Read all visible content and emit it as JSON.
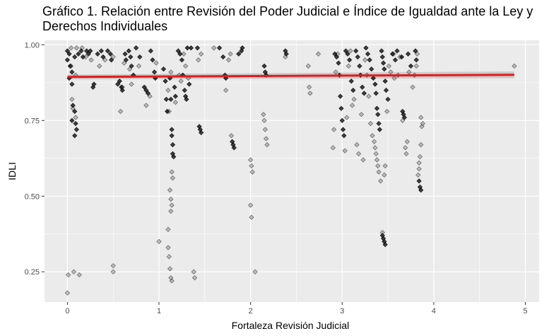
{
  "chart_data": {
    "type": "scatter",
    "title": "Gráfico 1. Relación entre Revisión del Poder Judicial e Índice de Igualdad ante la Ley y Derechos Individuales",
    "xlabel": "Fortaleza Revisión Judicial",
    "ylabel": "IDLI",
    "xlim": [
      -0.25,
      5.15
    ],
    "ylim": [
      0.15,
      1.015
    ],
    "x_ticks": [
      0,
      1,
      2,
      3,
      4,
      5
    ],
    "x_tick_labels": [
      "0",
      "1",
      "2",
      "3",
      "4",
      "5"
    ],
    "y_ticks": [
      0.25,
      0.5,
      0.75,
      1.0
    ],
    "y_tick_labels": [
      "0.25",
      "0.50",
      "0.75",
      "1.00"
    ],
    "grid": true,
    "colors": {
      "panel": "#ebebeb",
      "grid": "#ffffff",
      "points": "#000000",
      "trend": "#e41a1c",
      "band": "#bdbdbd"
    },
    "trend_line": {
      "x": [
        0.0,
        4.88
      ],
      "y": [
        0.894,
        0.901
      ],
      "band_halfwidth": 0.008
    },
    "series": [
      {
        "values": [
          [
            0.0,
            0.98
          ],
          [
            0.02,
            0.97
          ],
          [
            0.0,
            0.95
          ],
          [
            0.03,
            0.93
          ],
          [
            0.05,
            0.91
          ],
          [
            0.02,
            0.89
          ],
          [
            0.05,
            0.87
          ],
          [
            0.08,
            0.96
          ],
          [
            0.06,
            0.8
          ],
          [
            0.08,
            0.78
          ],
          [
            0.05,
            0.75
          ],
          [
            0.09,
            0.74
          ],
          [
            0.1,
            0.72
          ],
          [
            0.08,
            0.7
          ],
          [
            0.12,
            0.97
          ],
          [
            0.15,
            0.98
          ],
          [
            0.17,
            0.96
          ],
          [
            0.21,
            0.98
          ],
          [
            0.23,
            0.97
          ],
          [
            0.25,
            0.98
          ],
          [
            0.28,
            0.86
          ],
          [
            0.29,
            0.87
          ],
          [
            0.33,
            0.97
          ],
          [
            0.37,
            0.98
          ],
          [
            0.39,
            0.96
          ],
          [
            0.44,
            0.98
          ],
          [
            0.47,
            0.97
          ],
          [
            0.48,
            0.95
          ],
          [
            0.55,
            0.87
          ],
          [
            0.57,
            0.88
          ],
          [
            0.59,
            0.86
          ],
          [
            0.6,
            0.85
          ],
          [
            0.63,
            0.97
          ],
          [
            0.64,
            0.95
          ],
          [
            0.67,
            0.98
          ],
          [
            0.69,
            0.96
          ],
          [
            0.7,
            0.93
          ],
          [
            0.72,
            0.9
          ],
          [
            0.75,
            0.99
          ],
          [
            0.79,
            0.96
          ],
          [
            0.84,
            0.86
          ],
          [
            0.86,
            0.85
          ],
          [
            0.88,
            0.84
          ],
          [
            0.91,
            0.98
          ],
          [
            0.93,
            0.95
          ],
          [
            0.95,
            0.91
          ],
          [
            0.96,
            0.89
          ],
          [
            1.05,
            0.92
          ],
          [
            1.07,
            0.88
          ],
          [
            1.08,
            0.82
          ],
          [
            1.09,
            0.78
          ],
          [
            1.12,
            0.89
          ],
          [
            1.13,
            0.82
          ],
          [
            1.14,
            0.72
          ],
          [
            1.14,
            0.7
          ],
          [
            1.15,
            0.67
          ],
          [
            1.15,
            0.64
          ],
          [
            1.16,
            0.63
          ],
          [
            1.17,
            0.86
          ],
          [
            1.18,
            0.83
          ],
          [
            1.21,
            0.98
          ],
          [
            1.23,
            0.97
          ],
          [
            1.25,
            0.95
          ],
          [
            1.26,
            0.9
          ],
          [
            1.28,
            0.85
          ],
          [
            1.29,
            0.83
          ],
          [
            1.3,
            0.82
          ],
          [
            1.31,
            0.99
          ],
          [
            1.33,
            0.87
          ],
          [
            1.35,
            0.99
          ],
          [
            1.42,
            0.99
          ],
          [
            1.44,
            0.73
          ],
          [
            1.45,
            0.72
          ],
          [
            1.46,
            0.71
          ],
          [
            1.66,
            0.99
          ],
          [
            1.7,
            0.96
          ],
          [
            1.72,
            0.9
          ],
          [
            1.73,
            0.89
          ],
          [
            1.8,
            0.68
          ],
          [
            1.81,
            0.67
          ],
          [
            1.82,
            0.66
          ],
          [
            1.87,
            0.97
          ],
          [
            1.9,
            0.98
          ],
          [
            1.91,
            0.99
          ],
          [
            2.15,
            0.93
          ],
          [
            2.16,
            0.91
          ],
          [
            2.17,
            0.9
          ],
          [
            2.38,
            0.98
          ],
          [
            2.39,
            0.97
          ],
          [
            2.92,
            0.97
          ],
          [
            2.94,
            0.96
          ],
          [
            2.96,
            0.94
          ],
          [
            2.97,
            0.9
          ],
          [
            2.98,
            0.83
          ],
          [
            2.99,
            0.79
          ],
          [
            3.0,
            0.75
          ],
          [
            3.01,
            0.72
          ],
          [
            3.02,
            0.7
          ],
          [
            3.04,
            0.98
          ],
          [
            3.06,
            0.97
          ],
          [
            3.08,
            0.95
          ],
          [
            3.1,
            0.88
          ],
          [
            3.12,
            0.85
          ],
          [
            3.15,
            0.98
          ],
          [
            3.17,
            0.96
          ],
          [
            3.19,
            0.93
          ],
          [
            3.2,
            0.9
          ],
          [
            3.22,
            0.86
          ],
          [
            3.24,
            0.84
          ],
          [
            3.26,
            0.99
          ],
          [
            3.28,
            0.97
          ],
          [
            3.3,
            0.95
          ],
          [
            3.32,
            0.92
          ],
          [
            3.34,
            0.89
          ],
          [
            3.36,
            0.87
          ],
          [
            3.37,
            0.84
          ],
          [
            3.38,
            0.79
          ],
          [
            3.39,
            0.77
          ],
          [
            3.4,
            0.74
          ],
          [
            3.41,
            0.72
          ],
          [
            3.43,
            0.98
          ],
          [
            3.44,
            0.96
          ],
          [
            3.45,
            0.94
          ],
          [
            3.46,
            0.92
          ],
          [
            3.47,
            0.88
          ],
          [
            3.48,
            0.85
          ],
          [
            3.5,
            0.82
          ],
          [
            3.55,
            0.97
          ],
          [
            3.58,
            0.95
          ],
          [
            3.6,
            0.98
          ],
          [
            3.65,
            0.96
          ],
          [
            3.66,
            0.78
          ],
          [
            3.67,
            0.77
          ],
          [
            3.68,
            0.76
          ],
          [
            3.72,
            0.97
          ],
          [
            3.75,
            0.93
          ],
          [
            3.8,
            0.98
          ],
          [
            3.81,
            0.95
          ],
          [
            3.44,
            0.37
          ],
          [
            3.45,
            0.36
          ],
          [
            3.46,
            0.35
          ],
          [
            3.47,
            0.34
          ],
          [
            3.84,
            0.55
          ],
          [
            3.85,
            0.53
          ],
          [
            3.86,
            0.52
          ]
        ]
      },
      {
        "values": [
          [
            0.0,
            0.18
          ],
          [
            0.01,
            0.24
          ],
          [
            0.07,
            0.25
          ],
          [
            0.13,
            0.24
          ],
          [
            0.5,
            0.27
          ],
          [
            0.5,
            0.25
          ],
          [
            0.04,
            0.99
          ],
          [
            0.1,
            0.99
          ],
          [
            0.16,
            0.99
          ],
          [
            0.04,
            0.93
          ],
          [
            0.09,
            0.9
          ],
          [
            0.05,
            0.82
          ],
          [
            0.06,
            0.79
          ],
          [
            0.09,
            0.76
          ],
          [
            0.2,
            0.96
          ],
          [
            0.26,
            0.95
          ],
          [
            0.35,
            0.93
          ],
          [
            0.41,
            0.95
          ],
          [
            0.5,
            0.96
          ],
          [
            0.58,
            0.78
          ],
          [
            0.6,
            0.86
          ],
          [
            0.62,
            0.94
          ],
          [
            0.68,
            0.92
          ],
          [
            0.7,
            0.87
          ],
          [
            0.78,
            0.93
          ],
          [
            0.86,
            0.8
          ],
          [
            0.9,
            0.83
          ],
          [
            0.97,
            0.94
          ],
          [
            1.0,
            0.35
          ],
          [
            1.1,
            0.33
          ],
          [
            1.11,
            0.3
          ],
          [
            1.12,
            0.26
          ],
          [
            1.13,
            0.23
          ],
          [
            1.14,
            0.22
          ],
          [
            1.1,
            0.39
          ],
          [
            1.13,
            0.45
          ],
          [
            1.14,
            0.47
          ],
          [
            1.12,
            0.52
          ],
          [
            1.13,
            0.49
          ],
          [
            1.15,
            0.56
          ],
          [
            1.14,
            0.58
          ],
          [
            1.11,
            0.78
          ],
          [
            1.1,
            0.85
          ],
          [
            1.13,
            0.91
          ],
          [
            1.18,
            0.81
          ],
          [
            1.22,
            0.9
          ],
          [
            1.24,
            0.88
          ],
          [
            1.27,
            0.97
          ],
          [
            1.29,
            0.93
          ],
          [
            1.32,
            0.89
          ],
          [
            1.38,
            0.25
          ],
          [
            1.39,
            0.23
          ],
          [
            1.43,
            0.95
          ],
          [
            1.46,
            0.97
          ],
          [
            1.6,
            0.99
          ],
          [
            1.73,
            0.85
          ],
          [
            1.76,
            0.95
          ],
          [
            1.78,
            0.97
          ],
          [
            1.79,
            0.7
          ],
          [
            2.0,
            0.62
          ],
          [
            2.01,
            0.6
          ],
          [
            2.02,
            0.58
          ],
          [
            2.0,
            0.47
          ],
          [
            2.01,
            0.43
          ],
          [
            2.05,
            0.25
          ],
          [
            2.14,
            0.77
          ],
          [
            2.15,
            0.75
          ],
          [
            2.16,
            0.72
          ],
          [
            2.17,
            0.69
          ],
          [
            2.18,
            0.67
          ],
          [
            2.38,
            0.96
          ],
          [
            2.63,
            0.93
          ],
          [
            2.64,
            0.86
          ],
          [
            2.65,
            0.84
          ],
          [
            2.74,
            0.97
          ],
          [
            2.9,
            0.66
          ],
          [
            2.91,
            0.72
          ],
          [
            2.93,
            0.91
          ],
          [
            2.95,
            0.97
          ],
          [
            3.03,
            0.65
          ],
          [
            3.05,
            0.76
          ],
          [
            3.07,
            0.93
          ],
          [
            3.09,
            0.98
          ],
          [
            3.11,
            0.8
          ],
          [
            3.13,
            0.82
          ],
          [
            3.16,
            0.67
          ],
          [
            3.18,
            0.64
          ],
          [
            3.21,
            0.77
          ],
          [
            3.23,
            0.62
          ],
          [
            3.25,
            0.95
          ],
          [
            3.27,
            0.9
          ],
          [
            3.29,
            0.83
          ],
          [
            3.31,
            0.74
          ],
          [
            3.33,
            0.7
          ],
          [
            3.35,
            0.68
          ],
          [
            3.36,
            0.66
          ],
          [
            3.37,
            0.64
          ],
          [
            3.38,
            0.62
          ],
          [
            3.39,
            0.6
          ],
          [
            3.4,
            0.58
          ],
          [
            3.42,
            0.55
          ],
          [
            3.44,
            0.38
          ],
          [
            3.46,
            0.57
          ],
          [
            3.47,
            0.6
          ],
          [
            3.49,
            0.78
          ],
          [
            3.51,
            0.93
          ],
          [
            3.53,
            0.91
          ],
          [
            3.56,
            0.97
          ],
          [
            3.57,
            0.89
          ],
          [
            3.61,
            0.9
          ],
          [
            3.63,
            0.96
          ],
          [
            3.66,
            0.75
          ],
          [
            3.69,
            0.66
          ],
          [
            3.7,
            0.64
          ],
          [
            3.71,
            0.68
          ],
          [
            3.73,
            0.91
          ],
          [
            3.77,
            0.86
          ],
          [
            3.79,
            0.9
          ],
          [
            3.81,
            0.93
          ],
          [
            3.82,
            0.97
          ],
          [
            3.83,
            0.57
          ],
          [
            3.84,
            0.59
          ],
          [
            3.84,
            0.61
          ],
          [
            3.85,
            0.63
          ],
          [
            3.86,
            0.67
          ],
          [
            3.87,
            0.73
          ],
          [
            3.86,
            0.76
          ],
          [
            3.88,
            0.74
          ],
          [
            4.88,
            0.93
          ]
        ]
      }
    ]
  }
}
